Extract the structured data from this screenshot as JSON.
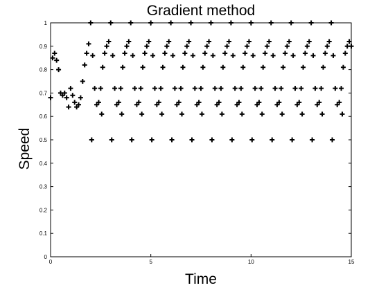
{
  "chart_data": {
    "type": "scatter",
    "title": "Gradient method",
    "xlabel": "Time",
    "ylabel": "Speed",
    "xlim": [
      0,
      15
    ],
    "ylim": [
      0,
      1
    ],
    "xticks": [
      0,
      5,
      10,
      15
    ],
    "yticks": [
      0,
      0.1,
      0.2,
      0.3,
      0.4,
      0.5,
      0.6,
      0.7,
      0.8,
      0.9,
      1
    ],
    "marker": "+",
    "color": "#000000",
    "x": [
      0,
      0.1,
      0.2,
      0.3,
      0.4,
      0.5,
      0.6,
      0.7,
      0.8,
      0.9,
      1,
      1.1,
      1.2,
      1.3,
      1.4,
      1.5,
      1.6,
      1.7,
      1.8,
      1.9,
      2,
      2.1,
      2.2,
      2.3,
      2.4,
      2.5,
      2.6,
      2.7,
      2.8,
      2.9,
      3,
      3.1,
      3.2,
      3.3,
      3.4,
      3.5,
      3.6,
      3.7,
      3.8,
      3.9,
      4,
      4.1,
      4.2,
      4.3,
      4.4,
      4.5,
      4.6,
      4.7,
      4.8,
      4.9,
      5,
      5.1,
      5.2,
      5.3,
      5.4,
      5.5,
      5.6,
      5.7,
      5.8,
      5.9,
      6,
      6.1,
      6.2,
      6.3,
      6.4,
      6.5,
      6.6,
      6.7,
      6.8,
      6.9,
      7,
      7.1,
      7.2,
      7.3,
      7.4,
      7.5,
      7.6,
      7.7,
      7.8,
      7.9,
      8,
      8.1,
      8.2,
      8.3,
      8.4,
      8.5,
      8.6,
      8.7,
      8.8,
      8.9,
      9,
      9.1,
      9.2,
      9.3,
      9.4,
      9.5,
      9.6,
      9.7,
      9.8,
      9.9,
      10,
      10.1,
      10.2,
      10.3,
      10.4,
      10.5,
      10.6,
      10.7,
      10.8,
      10.9,
      11,
      11.1,
      11.2,
      11.3,
      11.4,
      11.5,
      11.6,
      11.7,
      11.8,
      11.9,
      12,
      12.1,
      12.2,
      12.3,
      12.4,
      12.5,
      12.6,
      12.7,
      12.8,
      12.9,
      13,
      13.1,
      13.2,
      13.3,
      13.4,
      13.5,
      13.6,
      13.7,
      13.8,
      13.9,
      14,
      14.1,
      14.2,
      14.3,
      14.4,
      14.5,
      14.6,
      14.7,
      14.8,
      14.9,
      15,
      2.05,
      3.05,
      4.05,
      5.05,
      6.05,
      7.05,
      8.05,
      9.05,
      10.05,
      11.05,
      12.05,
      13.05,
      14.05,
      2.55,
      3.55,
      4.55,
      5.55,
      6.55,
      7.55,
      8.55,
      9.55,
      10.55,
      11.55,
      12.55,
      13.55,
      14.55
    ],
    "values": [
      0.68,
      0.85,
      0.87,
      0.84,
      0.8,
      0.7,
      0.69,
      0.7,
      0.68,
      0.64,
      0.72,
      0.69,
      0.66,
      0.64,
      0.65,
      0.68,
      0.75,
      0.82,
      0.87,
      0.91,
      1,
      0.86,
      0.72,
      0.65,
      0.66,
      0.72,
      0.81,
      0.87,
      0.9,
      0.92,
      1,
      0.86,
      0.72,
      0.65,
      0.66,
      0.72,
      0.81,
      0.87,
      0.9,
      0.92,
      1,
      0.86,
      0.72,
      0.65,
      0.66,
      0.72,
      0.81,
      0.87,
      0.9,
      0.92,
      1,
      0.86,
      0.72,
      0.65,
      0.66,
      0.72,
      0.81,
      0.87,
      0.9,
      0.92,
      1,
      0.86,
      0.72,
      0.65,
      0.66,
      0.72,
      0.81,
      0.87,
      0.9,
      0.92,
      1,
      0.86,
      0.72,
      0.65,
      0.66,
      0.72,
      0.81,
      0.87,
      0.9,
      0.92,
      1,
      0.86,
      0.72,
      0.65,
      0.66,
      0.72,
      0.81,
      0.87,
      0.9,
      0.92,
      1,
      0.86,
      0.72,
      0.65,
      0.66,
      0.72,
      0.81,
      0.87,
      0.9,
      0.92,
      1,
      0.86,
      0.72,
      0.65,
      0.66,
      0.72,
      0.81,
      0.87,
      0.9,
      0.92,
      1,
      0.86,
      0.72,
      0.65,
      0.66,
      0.72,
      0.81,
      0.87,
      0.9,
      0.92,
      1,
      0.86,
      0.72,
      0.65,
      0.66,
      0.72,
      0.81,
      0.87,
      0.9,
      0.92,
      1,
      0.86,
      0.72,
      0.65,
      0.66,
      0.72,
      0.81,
      0.87,
      0.9,
      0.92,
      1,
      0.86,
      0.72,
      0.65,
      0.66,
      0.72,
      0.81,
      0.87,
      0.9,
      0.92,
      0.9,
      0.5,
      0.5,
      0.5,
      0.5,
      0.5,
      0.5,
      0.5,
      0.5,
      0.5,
      0.5,
      0.5,
      0.5,
      0.5,
      0.61,
      0.61,
      0.61,
      0.61,
      0.61,
      0.61,
      0.61,
      0.61,
      0.61,
      0.61,
      0.61,
      0.61,
      0.61
    ]
  }
}
